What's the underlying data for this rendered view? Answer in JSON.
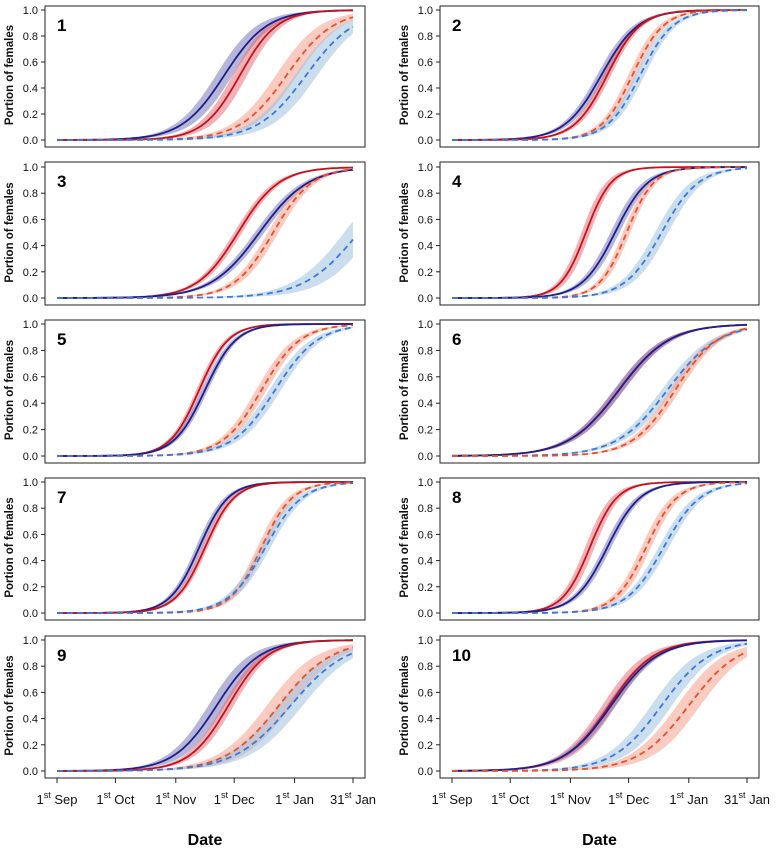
{
  "chart_data": {
    "type": "line",
    "xlabel": "Date",
    "ylabel": "Portion of females",
    "x_range": [
      "2000-09-01",
      "2001-01-31"
    ],
    "xticks": [
      {
        "date": "2000-09-01",
        "sup": "st",
        "label": "Sep"
      },
      {
        "date": "2000-10-01",
        "sup": "st",
        "label": "Oct"
      },
      {
        "date": "2000-11-01",
        "sup": "st",
        "label": "Nov"
      },
      {
        "date": "2000-12-01",
        "sup": "st",
        "label": "Dec"
      },
      {
        "date": "2001-01-01",
        "sup": "st",
        "label": "Jan"
      },
      {
        "date": "2001-01-31",
        "sup": "st",
        "label": "Jan"
      }
    ],
    "xtick_numbers": [
      "1",
      "1",
      "1",
      "1",
      "1",
      "31"
    ],
    "ylim": [
      0,
      1
    ],
    "yticks": [
      "0.0",
      "0.2",
      "0.4",
      "0.6",
      "0.8",
      "1.0"
    ],
    "grid": false,
    "series_colors": {
      "red_solid": "#c0141e",
      "blue_solid": "#1e1e8c",
      "red_dashed": "#e8502a",
      "blue_dashed": "#3c78dc",
      "red_band": "#e8646e",
      "blue_band": "#6e6eb4",
      "red_dashed_band": "#f5a08c",
      "blue_dashed_band": "#9ec3e0"
    },
    "panels": [
      {
        "label": "1",
        "curves": [
          {
            "style": "blue_solid",
            "mid": "2000-11-26",
            "scale": 11,
            "band": 0.1
          },
          {
            "style": "red_solid",
            "mid": "2000-12-04",
            "scale": 9.5,
            "band": 0.1
          },
          {
            "style": "red_dashed",
            "mid": "2000-12-28",
            "scale": 12,
            "band": 0.12
          },
          {
            "style": "blue_dashed",
            "mid": "2001-01-07",
            "scale": 12.5,
            "band": 0.12
          }
        ]
      },
      {
        "label": "2",
        "curves": [
          {
            "style": "blue_solid",
            "mid": "2000-11-17",
            "scale": 9.5,
            "band": 0.06
          },
          {
            "style": "red_solid",
            "mid": "2000-11-20",
            "scale": 8.5,
            "band": 0.06
          },
          {
            "style": "red_dashed",
            "mid": "2000-12-03",
            "scale": 8,
            "band": 0.07
          },
          {
            "style": "blue_dashed",
            "mid": "2000-12-07",
            "scale": 8.5,
            "band": 0.07
          }
        ]
      },
      {
        "label": "3",
        "curves": [
          {
            "style": "red_solid",
            "mid": "2000-12-03",
            "scale": 10.5,
            "band": 0.05
          },
          {
            "style": "blue_solid",
            "mid": "2000-12-14",
            "scale": 12.5,
            "band": 0.05
          },
          {
            "style": "red_dashed",
            "mid": "2000-12-21",
            "scale": 10,
            "band": 0.07
          },
          {
            "style": "blue_dashed",
            "mid": "2001-02-03",
            "scale": 14,
            "band": 0.14
          }
        ]
      },
      {
        "label": "4",
        "curves": [
          {
            "style": "red_solid",
            "mid": "2000-11-09",
            "scale": 6.5,
            "band": 0.09
          },
          {
            "style": "blue_solid",
            "mid": "2000-11-24",
            "scale": 8.5,
            "band": 0.07
          },
          {
            "style": "red_dashed",
            "mid": "2000-11-30",
            "scale": 7,
            "band": 0.07
          },
          {
            "style": "blue_dashed",
            "mid": "2000-12-18",
            "scale": 9.5,
            "band": 0.09
          }
        ]
      },
      {
        "label": "5",
        "curves": [
          {
            "style": "red_solid",
            "mid": "2000-11-13",
            "scale": 7.5,
            "band": 0.05
          },
          {
            "style": "blue_solid",
            "mid": "2000-11-16",
            "scale": 8,
            "band": 0.05
          },
          {
            "style": "red_dashed",
            "mid": "2000-12-15",
            "scale": 10,
            "band": 0.07
          },
          {
            "style": "blue_dashed",
            "mid": "2000-12-22",
            "scale": 11,
            "band": 0.07
          }
        ]
      },
      {
        "label": "6",
        "curves": [
          {
            "style": "red_solid",
            "mid": "2000-11-26",
            "scale": 13,
            "band": 0.05
          },
          {
            "style": "blue_solid",
            "mid": "2000-11-26",
            "scale": 13,
            "band": 0.05
          },
          {
            "style": "blue_dashed",
            "mid": "2000-12-21",
            "scale": 13,
            "band": 0.06
          },
          {
            "style": "red_dashed",
            "mid": "2000-12-25",
            "scale": 11,
            "band": 0.06
          }
        ]
      },
      {
        "label": "7",
        "curves": [
          {
            "style": "blue_solid",
            "mid": "2000-11-13",
            "scale": 7.5,
            "band": 0.06
          },
          {
            "style": "red_solid",
            "mid": "2000-11-16",
            "scale": 7.5,
            "band": 0.05
          },
          {
            "style": "red_dashed",
            "mid": "2000-12-15",
            "scale": 8,
            "band": 0.07
          },
          {
            "style": "blue_dashed",
            "mid": "2000-12-17",
            "scale": 9.5,
            "band": 0.07
          }
        ]
      },
      {
        "label": "8",
        "curves": [
          {
            "style": "red_solid",
            "mid": "2000-11-11",
            "scale": 7,
            "band": 0.09
          },
          {
            "style": "blue_solid",
            "mid": "2000-11-20",
            "scale": 8.5,
            "band": 0.06
          },
          {
            "style": "red_dashed",
            "mid": "2000-12-10",
            "scale": 8,
            "band": 0.08
          },
          {
            "style": "blue_dashed",
            "mid": "2000-12-19",
            "scale": 9.5,
            "band": 0.07
          }
        ]
      },
      {
        "label": "9",
        "curves": [
          {
            "style": "blue_solid",
            "mid": "2000-11-22",
            "scale": 11,
            "band": 0.1
          },
          {
            "style": "red_solid",
            "mid": "2000-11-28",
            "scale": 10,
            "band": 0.07
          },
          {
            "style": "red_dashed",
            "mid": "2000-12-24",
            "scale": 13.5,
            "band": 0.12
          },
          {
            "style": "blue_dashed",
            "mid": "2000-12-30",
            "scale": 14.5,
            "band": 0.11
          }
        ]
      },
      {
        "label": "10",
        "curves": [
          {
            "style": "red_solid",
            "mid": "2000-11-21",
            "scale": 11.5,
            "band": 0.08
          },
          {
            "style": "blue_solid",
            "mid": "2000-11-22",
            "scale": 12,
            "band": 0.05
          },
          {
            "style": "blue_dashed",
            "mid": "2000-12-18",
            "scale": 12.5,
            "band": 0.11
          },
          {
            "style": "red_dashed",
            "mid": "2001-01-01",
            "scale": 13,
            "band": 0.12
          }
        ]
      }
    ]
  }
}
